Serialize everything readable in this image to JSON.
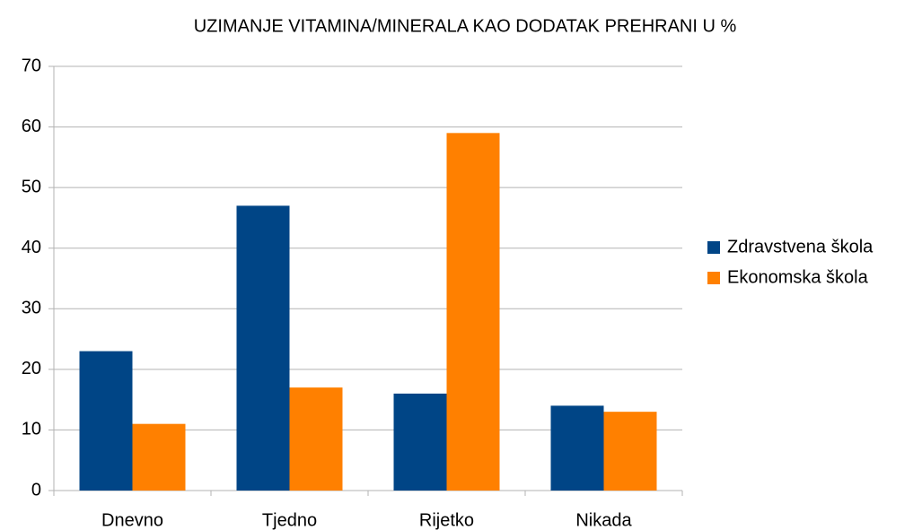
{
  "chart_data": {
    "type": "bar",
    "title": "UZIMANJE VITAMINA/MINERALA KAO DODATAK PREHRANI U %",
    "categories": [
      "Dnevno",
      "Tjedno",
      "Rijetko",
      "Nikada"
    ],
    "series": [
      {
        "name": "Zdravstvena škola",
        "color": "#004586",
        "values": [
          23,
          47,
          16,
          14
        ]
      },
      {
        "name": "Ekonomska škola",
        "color": "#ff8000",
        "values": [
          11,
          17,
          59,
          13
        ]
      }
    ],
    "ylim": [
      0,
      70
    ],
    "yticks": [
      0,
      10,
      20,
      30,
      40,
      50,
      60,
      70
    ],
    "grid": true,
    "legend": "right"
  }
}
